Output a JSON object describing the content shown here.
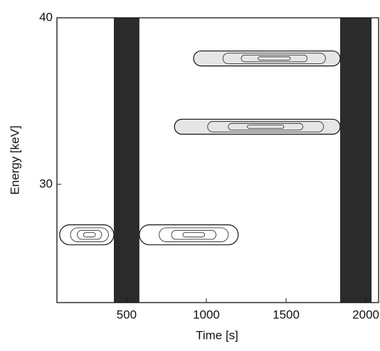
{
  "chart_data": {
    "type": "contour",
    "x_label": "Time [s]",
    "y_label": "Energy [keV]",
    "xlim": [
      63,
      2080
    ],
    "ylim": [
      22.9,
      40
    ],
    "xticks": [
      500,
      1000,
      1500,
      2000
    ],
    "yticks": [
      30,
      40
    ],
    "band_color": "#2b2b2b",
    "bands": [
      {
        "x": [
          420,
          580
        ]
      },
      {
        "x": [
          1839,
          2036
        ]
      }
    ],
    "blobs": [
      {
        "x": [
          920,
          1839
        ],
        "y": 37.56,
        "dy": 0.45,
        "fill": "#e6e6e6"
      },
      {
        "x": [
          800,
          1839
        ],
        "y": 33.46,
        "dy": 0.45,
        "fill": "#e6e6e6"
      },
      {
        "x": [
          80,
          420
        ],
        "y": 26.97,
        "dy": 0.6,
        "fill": "#ffffff"
      },
      {
        "x": [
          580,
          1200
        ],
        "y": 26.97,
        "dy": 0.6,
        "fill": "#ffffff"
      }
    ]
  }
}
